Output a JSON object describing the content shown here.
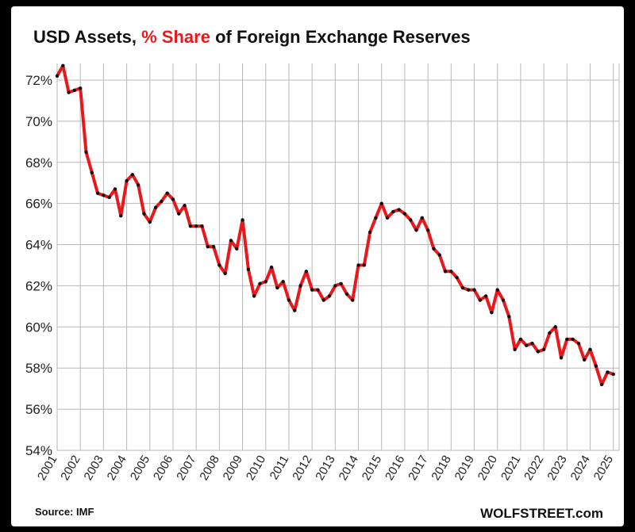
{
  "title": {
    "part1": "USD Assets, ",
    "part2": "% Share",
    "part3": " of Foreign Exchange Reserves"
  },
  "footer": {
    "source": "Source: IMF",
    "brand": "WOLFSTREET.com"
  },
  "colors": {
    "line": "#e8191d",
    "marker": "#111111",
    "grid": "#b8b8b8",
    "accent_title": "#e8191d"
  },
  "chart_data": {
    "type": "line",
    "title": "USD Assets, % Share of Foreign Exchange Reserves",
    "xlabel": "",
    "ylabel": "",
    "ylim": [
      54,
      72.5
    ],
    "xlim": [
      2001.0,
      2025.25
    ],
    "grid": true,
    "legend": "none",
    "y_ticks": [
      "54%",
      "56%",
      "58%",
      "60%",
      "62%",
      "64%",
      "66%",
      "68%",
      "70%",
      "72%"
    ],
    "x_ticks": [
      "2001",
      "2002",
      "2003",
      "2004",
      "2005",
      "2006",
      "2007",
      "2008",
      "2009",
      "2010",
      "2011",
      "2012",
      "2013",
      "2014",
      "2015",
      "2016",
      "2017",
      "2018",
      "2019",
      "2020",
      "2021",
      "2022",
      "2023",
      "2024",
      "2025"
    ],
    "x": [
      2001.0,
      2001.25,
      2001.5,
      2001.75,
      2002.0,
      2002.25,
      2002.5,
      2002.75,
      2003.0,
      2003.25,
      2003.5,
      2003.75,
      2004.0,
      2004.25,
      2004.5,
      2004.75,
      2005.0,
      2005.25,
      2005.5,
      2005.75,
      2006.0,
      2006.25,
      2006.5,
      2006.75,
      2007.0,
      2007.25,
      2007.5,
      2007.75,
      2008.0,
      2008.25,
      2008.5,
      2008.75,
      2009.0,
      2009.25,
      2009.5,
      2009.75,
      2010.0,
      2010.25,
      2010.5,
      2010.75,
      2011.0,
      2011.25,
      2011.5,
      2011.75,
      2012.0,
      2012.25,
      2012.5,
      2012.75,
      2013.0,
      2013.25,
      2013.5,
      2013.75,
      2014.0,
      2014.25,
      2014.5,
      2014.75,
      2015.0,
      2015.25,
      2015.5,
      2015.75,
      2016.0,
      2016.25,
      2016.5,
      2016.75,
      2017.0,
      2017.25,
      2017.5,
      2017.75,
      2018.0,
      2018.25,
      2018.5,
      2018.75,
      2019.0,
      2019.25,
      2019.5,
      2019.75,
      2020.0,
      2020.25,
      2020.5,
      2020.75,
      2021.0,
      2021.25,
      2021.5,
      2021.75,
      2022.0,
      2022.25,
      2022.5,
      2022.75,
      2023.0,
      2023.25,
      2023.5,
      2023.75,
      2024.0,
      2024.25,
      2024.5,
      2024.75,
      2025.0
    ],
    "values": [
      72.2,
      72.7,
      71.4,
      71.5,
      71.6,
      68.5,
      67.5,
      66.5,
      66.4,
      66.3,
      66.7,
      65.4,
      67.1,
      67.4,
      66.9,
      65.5,
      65.1,
      65.8,
      66.1,
      66.5,
      66.2,
      65.5,
      65.9,
      64.9,
      64.9,
      64.9,
      63.9,
      63.9,
      63.0,
      62.6,
      64.2,
      63.8,
      65.2,
      62.8,
      61.5,
      62.1,
      62.2,
      62.9,
      61.9,
      62.2,
      61.3,
      60.8,
      62.0,
      62.7,
      61.8,
      61.8,
      61.3,
      61.5,
      62.0,
      62.1,
      61.6,
      61.3,
      63.0,
      63.0,
      64.6,
      65.3,
      66.0,
      65.3,
      65.6,
      65.7,
      65.5,
      65.2,
      64.7,
      65.3,
      64.7,
      63.8,
      63.5,
      62.7,
      62.7,
      62.4,
      61.9,
      61.8,
      61.8,
      61.3,
      61.5,
      60.7,
      61.8,
      61.3,
      60.5,
      58.9,
      59.4,
      59.1,
      59.2,
      58.8,
      58.9,
      59.7,
      60.0,
      58.5,
      59.4,
      59.4,
      59.2,
      58.4,
      58.9,
      58.1,
      57.2,
      57.8,
      57.7
    ]
  }
}
